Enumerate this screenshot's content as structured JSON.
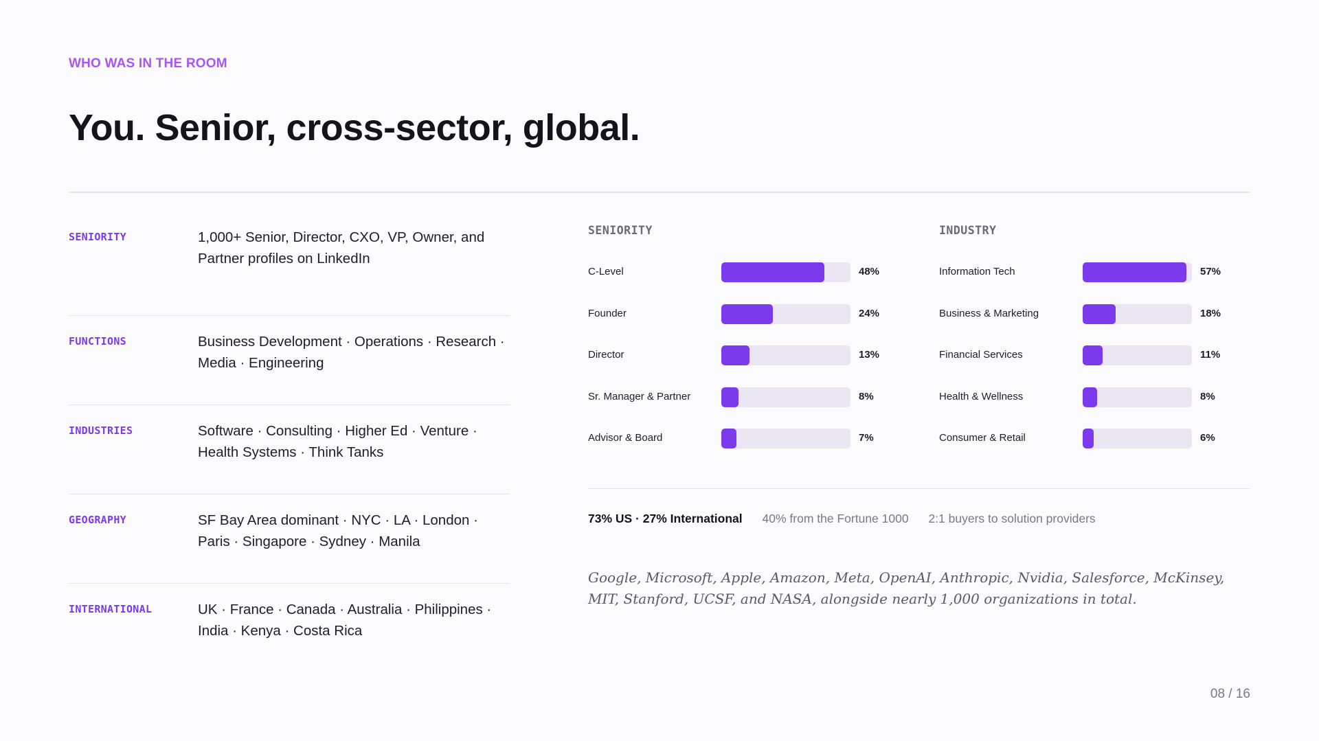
{
  "header": {
    "eyebrow": "WHO WAS IN THE ROOM",
    "title": "You. Senior, cross-sector, global."
  },
  "profile_rows": [
    {
      "key": "SENIORITY",
      "value": "1,000+ Senior, Director, CXO, VP, Owner, and Partner profiles on LinkedIn"
    },
    {
      "key": "FUNCTIONS",
      "value": "Business Development · Operations · Research · Media · Engineering"
    },
    {
      "key": "INDUSTRIES",
      "value": "Software · Consulting · Higher Ed · Venture · Health Systems · Think Tanks"
    },
    {
      "key": "GEOGRAPHY",
      "value": "SF Bay Area dominant · NYC · LA · London · Paris · Singapore · Sydney · Manila"
    },
    {
      "key": "INTERNATIONAL",
      "value": "UK · France · Canada · Australia · Philippines · India · Kenya · Costa Rica"
    }
  ],
  "chart_data": [
    {
      "type": "bar",
      "orientation": "horizontal",
      "title": "SENIORITY",
      "categories": [
        "C-Level",
        "Founder",
        "Director",
        "Sr. Manager & Partner",
        "Advisor & Board"
      ],
      "values": [
        48,
        24,
        13,
        8,
        7
      ],
      "value_labels": [
        "48%",
        "24%",
        "13%",
        "8%",
        "7%"
      ],
      "unit": "%",
      "xlim": [
        0,
        60
      ],
      "grid": false,
      "color": "#7c3aed"
    },
    {
      "type": "bar",
      "orientation": "horizontal",
      "title": "INDUSTRY",
      "categories": [
        "Information Tech",
        "Business & Marketing",
        "Financial Services",
        "Health & Wellness",
        "Consumer & Retail"
      ],
      "values": [
        57,
        18,
        11,
        8,
        6
      ],
      "value_labels": [
        "57%",
        "18%",
        "11%",
        "8%",
        "6%"
      ],
      "unit": "%",
      "xlim": [
        0,
        60
      ],
      "grid": false,
      "color": "#7c3aed"
    }
  ],
  "stats": {
    "primary": "73% US · 27% International",
    "fortune": "40% from the Fortune 1000",
    "ratio": "2:1 buyers to solution providers"
  },
  "note": "Google, Microsoft, Apple, Amazon, Meta, OpenAI, Anthropic, Nvidia, Salesforce, McKinsey, MIT, Stanford, UCSF, and NASA, alongside nearly 1,000 organizations in total.",
  "page_number": "08 / 16",
  "colors": {
    "accent": "#7c3aed",
    "eyebrow": "#a855f7",
    "track": "#eae7f2"
  }
}
